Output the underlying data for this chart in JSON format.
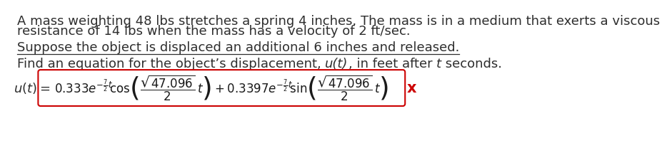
{
  "line1": "A mass weighting 48 lbs stretches a spring 4 inches. The mass is in a medium that exerts a viscous",
  "line2": "resistance of 14 lbs when the mass has a velocity of 2 ft/sec.",
  "line3": "Suppose the object is displaced an additional 6 inches and released.",
  "line4_pre": "Find an equation for the object’s displacement, ",
  "line4_italic1": "u(t)",
  "line4_mid": ", in feet after ",
  "line4_italic2": "t",
  "line4_end": " seconds.",
  "bg_color": "#ffffff",
  "text_color": "#2e2e2e",
  "box_color": "#cc0000",
  "formula_color": "#1a1a1a",
  "font_size_body": 13,
  "font_size_formula": 12
}
